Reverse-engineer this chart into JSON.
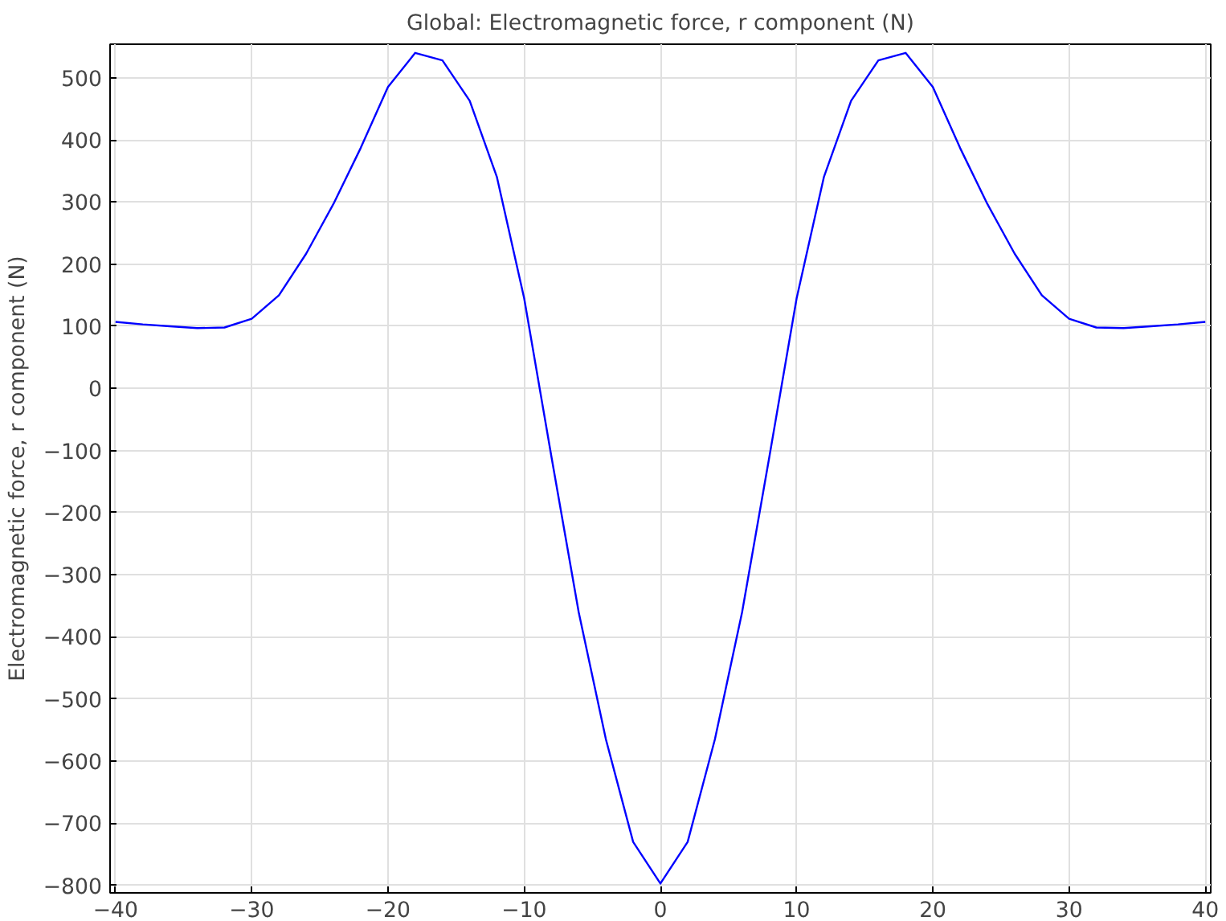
{
  "chart_data": {
    "type": "line",
    "title": "Global: Electromagnetic force, r component (N)",
    "ylabel": "Electromagnetic force, r component (N)",
    "x": [
      -40,
      -38,
      -36,
      -34,
      -32,
      -30,
      -28,
      -26,
      -24,
      -22,
      -20,
      -18,
      -16,
      -14,
      -12,
      -10,
      -8,
      -6,
      -4,
      -2,
      0,
      2,
      4,
      6,
      8,
      10,
      12,
      14,
      16,
      18,
      20,
      22,
      24,
      26,
      28,
      30,
      32,
      34,
      36,
      38,
      40
    ],
    "series": [
      {
        "color": "#0000ff",
        "values": [
          107,
          103,
          100,
          97,
          98,
          112,
          150,
          217,
          297,
          387,
          485,
          540,
          528,
          463,
          340,
          145,
          -110,
          -360,
          -565,
          -730,
          -797,
          -730,
          -565,
          -360,
          -110,
          145,
          340,
          463,
          528,
          540,
          485,
          387,
          297,
          217,
          150,
          112,
          98,
          97,
          100,
          103,
          107
        ]
      }
    ],
    "xlim": [
      -40.4,
      40.4
    ],
    "ylim": [
      -812,
      554
    ],
    "xticks": [
      -40,
      -30,
      -20,
      -10,
      0,
      10,
      20,
      30,
      40
    ],
    "yticks": [
      -800,
      -700,
      -600,
      -500,
      -400,
      -300,
      -200,
      -100,
      0,
      100,
      200,
      300,
      400,
      500
    ],
    "grid": true,
    "marker": "none",
    "line_style": "solid"
  }
}
